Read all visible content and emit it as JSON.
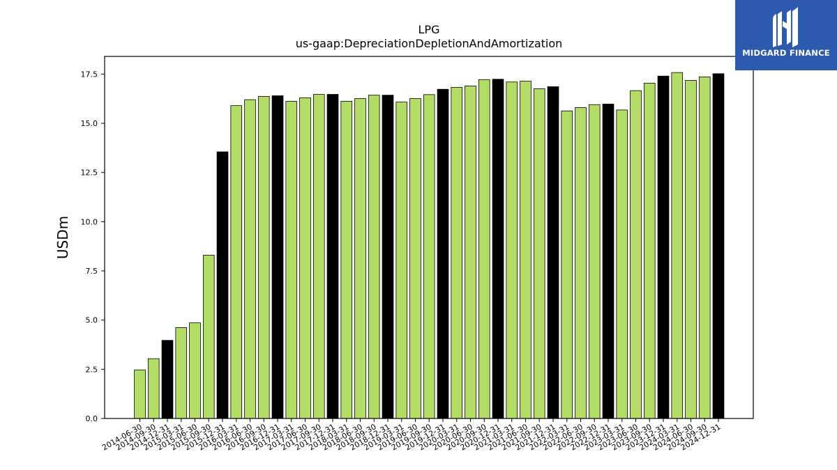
{
  "chart_data": {
    "type": "bar",
    "title": "LPG",
    "subtitle": "us-gaap:DepreciationDepletionAndAmortization",
    "xlabel": "",
    "ylabel": "USDm",
    "ylim": [
      0,
      18.4
    ],
    "yticks": [
      "0.0",
      "2.5",
      "5.0",
      "7.5",
      "10.0",
      "12.5",
      "15.0",
      "17.5"
    ],
    "grid": false,
    "colors": {
      "quarter": "#b2dc66",
      "year_end": "#000000",
      "edge": "#000000"
    },
    "categories": [
      "2014-06-30",
      "2014-09-30",
      "2014-12-31",
      "2015-03-31",
      "2015-06-30",
      "2015-09-30",
      "2015-12-31",
      "2016-03-31",
      "2016-06-30",
      "2016-09-30",
      "2016-12-31",
      "2017-03-31",
      "2017-06-30",
      "2017-09-30",
      "2017-12-31",
      "2018-03-31",
      "2018-06-30",
      "2018-09-30",
      "2018-12-31",
      "2019-03-31",
      "2019-06-30",
      "2019-09-30",
      "2019-12-31",
      "2020-03-31",
      "2020-06-30",
      "2020-09-30",
      "2020-12-31",
      "2021-03-31",
      "2021-06-30",
      "2021-09-30",
      "2021-12-31",
      "2022-03-31",
      "2022-06-30",
      "2022-09-30",
      "2022-12-31",
      "2023-03-31",
      "2023-06-30",
      "2023-09-30",
      "2023-12-31",
      "2024-03-31",
      "2024-06-30",
      "2024-09-30",
      "2024-12-31"
    ],
    "values": [
      2.47,
      3.04,
      3.97,
      4.62,
      4.86,
      8.3,
      13.55,
      15.9,
      16.2,
      16.37,
      16.4,
      16.12,
      16.3,
      16.47,
      16.47,
      16.12,
      16.26,
      16.43,
      16.43,
      16.08,
      16.26,
      16.46,
      16.73,
      16.83,
      16.9,
      17.22,
      17.24,
      17.1,
      17.14,
      16.76,
      16.86,
      15.63,
      15.8,
      15.95,
      15.98,
      15.68,
      16.66,
      17.04,
      17.4,
      17.58,
      17.18,
      17.36,
      17.52
    ]
  },
  "logo": {
    "text": "MIDGARD FINANCE",
    "icon": "midgard-logo-icon"
  }
}
